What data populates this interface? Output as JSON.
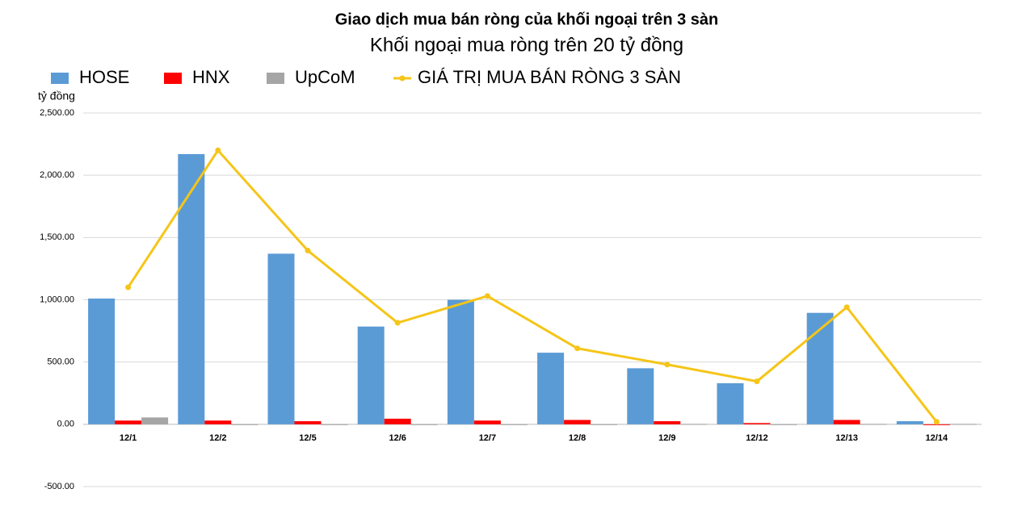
{
  "chart_data": {
    "type": "bar",
    "title": "Giao dịch mua bán ròng của khối ngoại trên 3 sàn",
    "subtitle": "Khối ngoại mua ròng trên 20 tỷ đồng",
    "y_label": "tỷ đồng",
    "categories": [
      "12/1",
      "12/2",
      "12/5",
      "12/6",
      "12/7",
      "12/8",
      "12/9",
      "12/12",
      "12/13",
      "12/14"
    ],
    "series": [
      {
        "name": "HOSE",
        "color": "#5b9bd5",
        "type": "bar",
        "values": [
          1010,
          2170,
          1370,
          785,
          1000,
          575,
          450,
          330,
          895,
          25
        ]
      },
      {
        "name": "HNX",
        "color": "#ff0000",
        "type": "bar",
        "values": [
          30,
          30,
          25,
          45,
          30,
          35,
          25,
          10,
          35,
          -5
        ]
      },
      {
        "name": "UpCoM",
        "color": "#a5a5a5",
        "type": "bar",
        "values": [
          55,
          0,
          -5,
          -5,
          -5,
          -5,
          3,
          -5,
          3,
          3
        ]
      },
      {
        "name": "GIÁ TRỊ MUA BÁN RÒNG 3 SÀN",
        "color": "#f5c518",
        "type": "line",
        "values": [
          1100,
          2200,
          1395,
          815,
          1030,
          610,
          480,
          345,
          940,
          20
        ]
      }
    ],
    "ylim": [
      -500,
      2500
    ],
    "yticks": [
      {
        "value": -500,
        "label": "-500.00"
      },
      {
        "value": 0,
        "label": "0.00"
      },
      {
        "value": 500,
        "label": "500.00"
      },
      {
        "value": 1000,
        "label": "1,000.00"
      },
      {
        "value": 1500,
        "label": "1,500.00"
      },
      {
        "value": 2000,
        "label": "2,000.00"
      },
      {
        "value": 2500,
        "label": "2,500.00"
      }
    ],
    "grid": true,
    "legend": "top"
  }
}
